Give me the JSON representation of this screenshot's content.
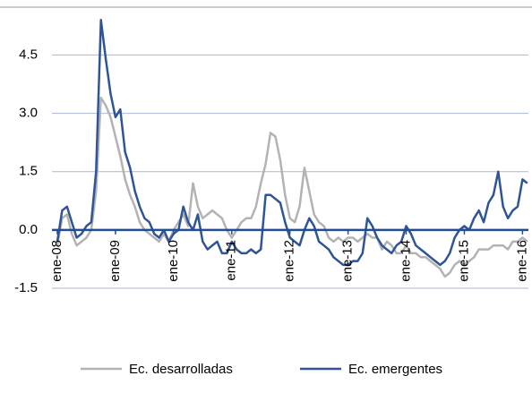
{
  "chart_data": {
    "type": "line",
    "categories": [
      "ene-08",
      null,
      null,
      null,
      null,
      null,
      null,
      null,
      null,
      null,
      null,
      null,
      "ene-09",
      null,
      null,
      null,
      null,
      null,
      null,
      null,
      null,
      null,
      null,
      null,
      "ene-10",
      null,
      null,
      null,
      null,
      null,
      null,
      null,
      null,
      null,
      null,
      null,
      "ene-11",
      null,
      null,
      null,
      null,
      null,
      null,
      null,
      null,
      null,
      null,
      null,
      "ene-12",
      null,
      null,
      null,
      null,
      null,
      null,
      null,
      null,
      null,
      null,
      null,
      "ene-13",
      null,
      null,
      null,
      null,
      null,
      null,
      null,
      null,
      null,
      null,
      null,
      "ene-14",
      null,
      null,
      null,
      null,
      null,
      null,
      null,
      null,
      null,
      null,
      null,
      "ene-15",
      null,
      null,
      null,
      null,
      null,
      null,
      null,
      null,
      null,
      null,
      null,
      "ene-16",
      null
    ],
    "series": [
      {
        "name": "Ec. desarrolladas",
        "color": "#b3b3b3",
        "values": [
          -0.4,
          0.3,
          0.4,
          -0.1,
          -0.4,
          -0.3,
          -0.2,
          0.0,
          1.0,
          3.4,
          3.2,
          2.9,
          2.4,
          1.9,
          1.3,
          0.9,
          0.6,
          0.2,
          0.0,
          -0.1,
          -0.2,
          -0.3,
          -0.1,
          -0.3,
          0.0,
          0.2,
          0.4,
          0.1,
          1.2,
          0.6,
          0.3,
          0.4,
          0.5,
          0.4,
          0.3,
          0.0,
          -0.2,
          0.0,
          0.2,
          0.3,
          0.3,
          0.6,
          1.2,
          1.7,
          2.5,
          2.4,
          1.8,
          0.9,
          0.3,
          0.2,
          0.6,
          1.6,
          1.0,
          0.4,
          0.2,
          0.1,
          -0.2,
          -0.3,
          -0.2,
          -0.3,
          -0.2,
          -0.2,
          -0.3,
          -0.2,
          -0.1,
          -0.2,
          -0.2,
          -0.5,
          -0.3,
          -0.4,
          -0.6,
          -0.6,
          -0.4,
          -0.6,
          -0.6,
          -0.7,
          -0.7,
          -0.8,
          -0.9,
          -1.0,
          -1.2,
          -1.1,
          -0.9,
          -0.8,
          -0.9,
          -0.8,
          -0.7,
          -0.5,
          -0.5,
          -0.5,
          -0.4,
          -0.4,
          -0.4,
          -0.5,
          -0.3,
          -0.3,
          -0.2,
          -0.3
        ]
      },
      {
        "name": "Ec. emergentes",
        "color": "#2f5597",
        "values": [
          -0.3,
          0.5,
          0.6,
          0.2,
          -0.2,
          -0.1,
          0.1,
          0.2,
          1.5,
          5.4,
          4.4,
          3.5,
          2.9,
          3.1,
          2.0,
          1.6,
          1.0,
          0.6,
          0.3,
          0.2,
          -0.1,
          -0.2,
          0.0,
          -0.3,
          -0.1,
          0.0,
          0.6,
          0.2,
          0.0,
          0.4,
          -0.3,
          -0.5,
          -0.4,
          -0.3,
          -0.6,
          -0.6,
          -0.3,
          -0.5,
          -0.6,
          -0.6,
          -0.5,
          -0.6,
          -0.5,
          0.9,
          0.9,
          0.8,
          0.7,
          0.2,
          -0.2,
          -0.3,
          -0.4,
          0.0,
          0.3,
          0.1,
          -0.3,
          -0.4,
          -0.5,
          -0.7,
          -0.8,
          -0.9,
          -0.9,
          -0.8,
          -0.8,
          -0.6,
          0.3,
          0.1,
          -0.2,
          -0.4,
          -0.5,
          -0.6,
          -0.4,
          -0.3,
          0.1,
          -0.1,
          -0.4,
          -0.5,
          -0.6,
          -0.7,
          -0.8,
          -0.9,
          -0.8,
          -0.6,
          -0.2,
          0.0,
          0.1,
          0.0,
          0.3,
          0.5,
          0.2,
          0.7,
          0.9,
          1.5,
          0.6,
          0.3,
          0.5,
          0.6,
          1.3,
          1.2
        ]
      }
    ],
    "ylim": [
      -1.5,
      5.5
    ],
    "yticks": [
      -1.5,
      {
        "value": 0,
        "label": "0.0"
      },
      1.5,
      {
        "value": 3,
        "label": "3.0"
      },
      4.5
    ],
    "grid": true
  }
}
